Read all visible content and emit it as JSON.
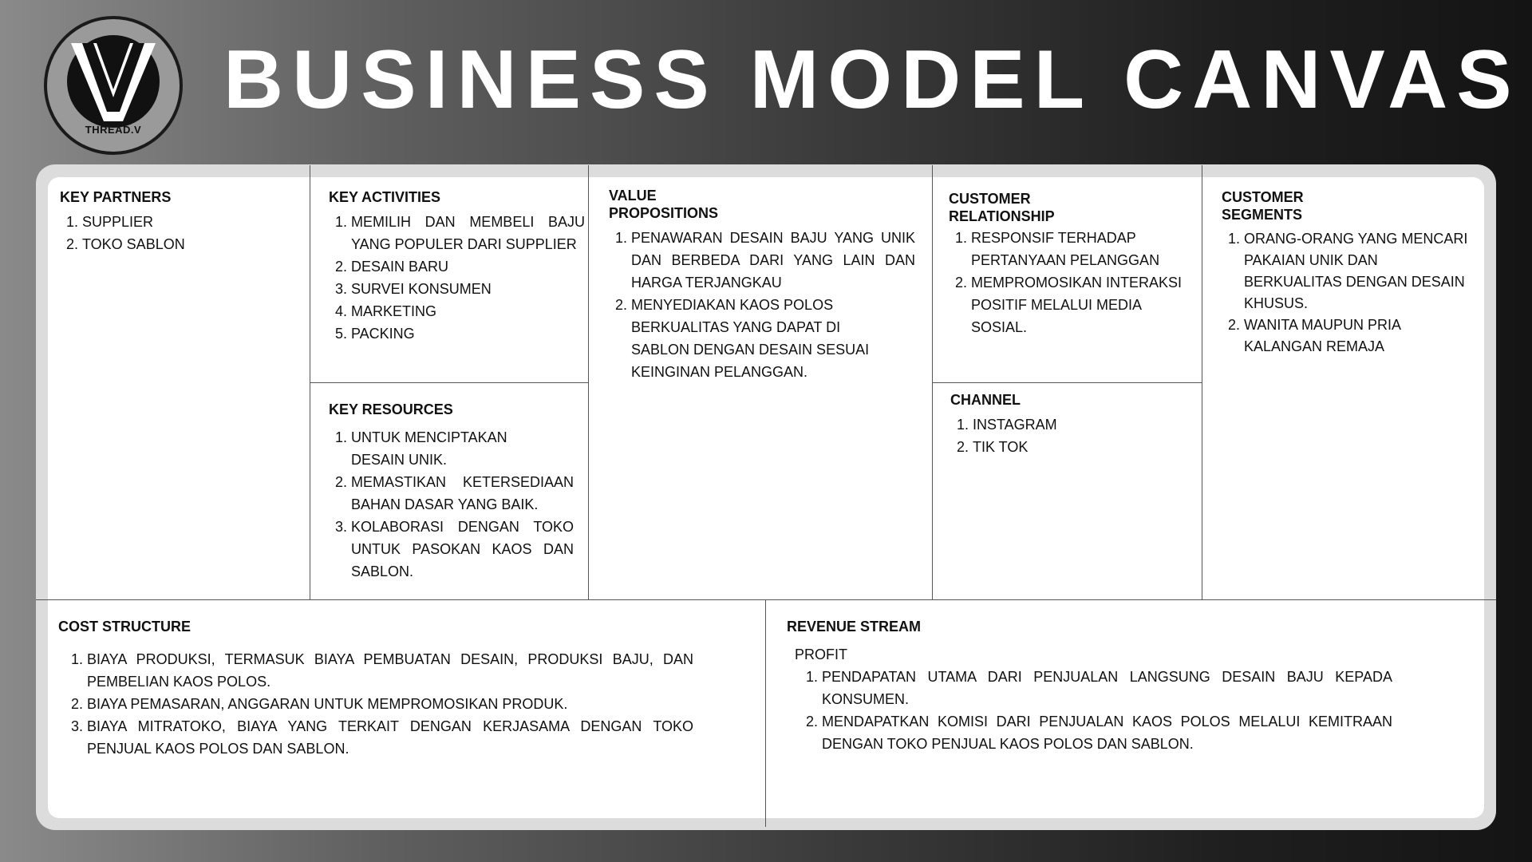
{
  "logo": {
    "text": "THREAD.V"
  },
  "title": "BUSINESS MODEL CANVAS",
  "key_partners": {
    "heading": "KEY PARTNERS",
    "items": [
      "SUPPLIER",
      "TOKO SABLON"
    ]
  },
  "key_activities": {
    "heading": "KEY ACTIVITIES",
    "items": [
      "MEMILIH DAN MEMBELI BAJU YANG POPULER DARI SUPPLIER",
      "DESAIN BARU",
      "SURVEI KONSUMEN",
      "MARKETING",
      "PACKING"
    ]
  },
  "key_resources": {
    "heading": "KEY RESOURCES",
    "items": [
      "UNTUK MENCIPTAKAN DESAIN UNIK.",
      "MEMASTIKAN KETERSEDIAAN BAHAN DASAR YANG BAIK.",
      "KOLABORASI DENGAN TOKO UNTUK PASOKAN KAOS DAN SABLON."
    ]
  },
  "value_propositions": {
    "heading_line1": "VALUE",
    "heading_line2": "PROPOSITIONS",
    "items": [
      "PENAWARAN DESAIN BAJU YANG UNIK DAN BERBEDA DARI YANG LAIN DAN HARGA TERJANGKAU",
      "MENYEDIAKAN KAOS POLOS BERKUALITAS YANG DAPAT DI SABLON DENGAN DESAIN SESUAI KEINGINAN PELANGGAN."
    ]
  },
  "customer_relationship": {
    "heading_line1": "CUSTOMER",
    "heading_line2": "RELATIONSHIP",
    "items": [
      "RESPONSIF TERHADAP PERTANYAAN PELANGGAN",
      "MEMPROMOSIKAN INTERAKSI POSITIF MELALUI MEDIA SOSIAL."
    ]
  },
  "channel": {
    "heading": "CHANNEL",
    "items": [
      "INSTAGRAM",
      "TIK TOK"
    ]
  },
  "customer_segments": {
    "heading_line1": "CUSTOMER",
    "heading_line2": "SEGMENTS",
    "items": [
      "ORANG-ORANG YANG MENCARI PAKAIAN UNIK DAN BERKUALITAS DENGAN DESAIN KHUSUS.",
      "WANITA MAUPUN PRIA KALANGAN REMAJA"
    ]
  },
  "cost_structure": {
    "heading": "COST STRUCTURE",
    "items": [
      "BIAYA PRODUKSI, TERMASUK BIAYA PEMBUATAN DESAIN, PRODUKSI BAJU, DAN PEMBELIAN KAOS POLOS.",
      "BIAYA PEMASARAN, ANGGARAN UNTUK MEMPROMOSIKAN PRODUK.",
      "BIAYA MITRATOKO, BIAYA YANG TERKAIT DENGAN KERJASAMA DENGAN TOKO PENJUAL KAOS POLOS DAN SABLON."
    ]
  },
  "revenue_stream": {
    "heading": "REVENUE STREAM",
    "intro": "PROFIT",
    "items": [
      "PENDAPATAN UTAMA DARI PENJUALAN LANGSUNG DESAIN BAJU KEPADA KONSUMEN.",
      "MENDAPATKAN KOMISI DARI PENJUALAN KAOS POLOS MELALUI KEMITRAAN DENGAN TOKO PENJUAL KAOS POLOS DAN SABLON."
    ]
  }
}
